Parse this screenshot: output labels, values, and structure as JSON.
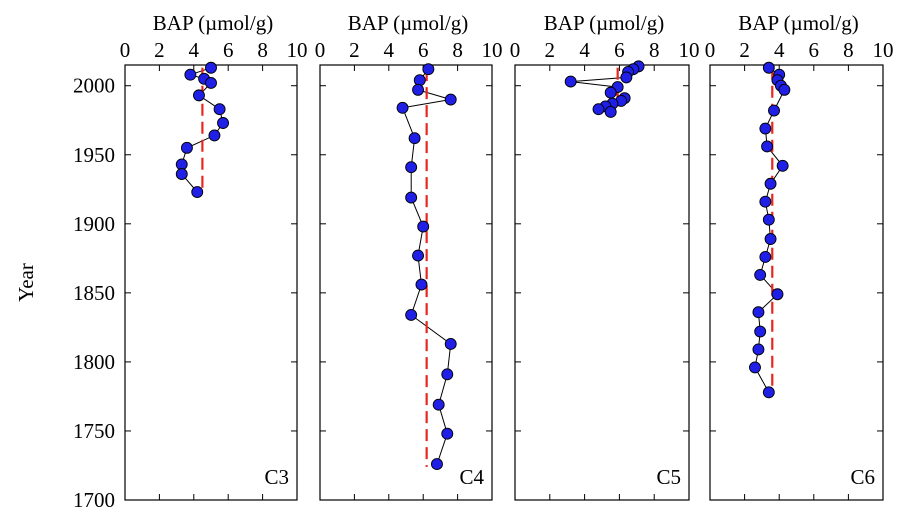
{
  "chart_data": [
    {
      "type": "scatter",
      "title": "BAP (µmol/g)",
      "ylabel": "Year",
      "label": "C3",
      "xlim": [
        0,
        10
      ],
      "ylim": [
        1700,
        2015
      ],
      "xticks": [
        "0",
        "2",
        "4",
        "6",
        "8",
        "10"
      ],
      "yticks": [
        "1700",
        "1750",
        "1800",
        "1850",
        "1900",
        "1950",
        "2000"
      ],
      "mean": 4.5,
      "mean_range": [
        1922,
        2013
      ],
      "series": [
        {
          "x": [
            5.0,
            3.8,
            4.6,
            5.0,
            4.3,
            5.5,
            5.7,
            5.2,
            3.6,
            3.3,
            3.3,
            4.2
          ],
          "y": [
            2013,
            2008,
            2005,
            2002,
            1993,
            1983,
            1973,
            1964,
            1955,
            1943,
            1936,
            1923
          ]
        }
      ],
      "colors": {
        "marker": "#1f1fe6",
        "mean_line": "#e8261f"
      }
    },
    {
      "type": "scatter",
      "title": "BAP (µmol/g)",
      "label": "C4",
      "xlim": [
        0,
        10
      ],
      "ylim": [
        1700,
        2015
      ],
      "xticks": [
        "0",
        "2",
        "4",
        "6",
        "8",
        "10"
      ],
      "mean": 6.2,
      "mean_range": [
        1724,
        2012
      ],
      "series": [
        {
          "x": [
            6.3,
            5.8,
            5.7,
            7.6,
            4.8,
            5.5,
            5.3,
            5.3,
            6.0,
            5.7,
            5.9,
            5.3,
            7.6,
            7.4,
            6.9,
            7.4,
            6.8
          ],
          "y": [
            2012,
            2004,
            1997,
            1990,
            1984,
            1962,
            1941,
            1919,
            1898,
            1877,
            1856,
            1834,
            1813,
            1791,
            1769,
            1748,
            1726
          ]
        }
      ],
      "colors": {
        "marker": "#1f1fe6",
        "mean_line": "#e8261f"
      }
    },
    {
      "type": "scatter",
      "title": "BAP (µmol/g)",
      "label": "C5",
      "xlim": [
        0,
        10
      ],
      "ylim": [
        1700,
        2015
      ],
      "xticks": [
        "0",
        "2",
        "4",
        "6",
        "8",
        "10"
      ],
      "mean": 5.9,
      "mean_range": [
        1985,
        2013
      ],
      "series": [
        {
          "x": [
            7.1,
            6.8,
            6.5,
            6.4,
            3.2,
            5.9,
            5.5,
            6.3,
            6.1,
            5.6,
            5.2,
            4.8,
            5.5
          ],
          "y": [
            2014,
            2012,
            2010,
            2006,
            2003,
            1999,
            1995,
            1991,
            1989,
            1987,
            1985,
            1983,
            1981
          ]
        }
      ],
      "colors": {
        "marker": "#1f1fe6",
        "mean_line": "#e8261f"
      }
    },
    {
      "type": "scatter",
      "title": "BAP (µmol/g)",
      "label": "C6",
      "xlim": [
        0,
        10
      ],
      "ylim": [
        1700,
        2015
      ],
      "xticks": [
        "0",
        "2",
        "4",
        "6",
        "8",
        "10"
      ],
      "mean": 3.6,
      "mean_range": [
        1778,
        2013
      ],
      "series": [
        {
          "x": [
            3.4,
            4.0,
            3.9,
            4.1,
            4.3,
            3.7,
            3.2,
            3.3,
            4.2,
            3.5,
            3.2,
            3.4,
            3.5,
            3.2,
            2.9,
            3.9,
            2.8,
            2.9,
            2.8,
            2.6,
            3.4
          ],
          "y": [
            2013,
            2008,
            2004,
            2000,
            1997,
            1982,
            1969,
            1956,
            1942,
            1929,
            1916,
            1903,
            1889,
            1876,
            1863,
            1849,
            1836,
            1822,
            1809,
            1796,
            1778
          ]
        }
      ],
      "colors": {
        "marker": "#1f1fe6",
        "mean_line": "#e8261f"
      }
    }
  ]
}
